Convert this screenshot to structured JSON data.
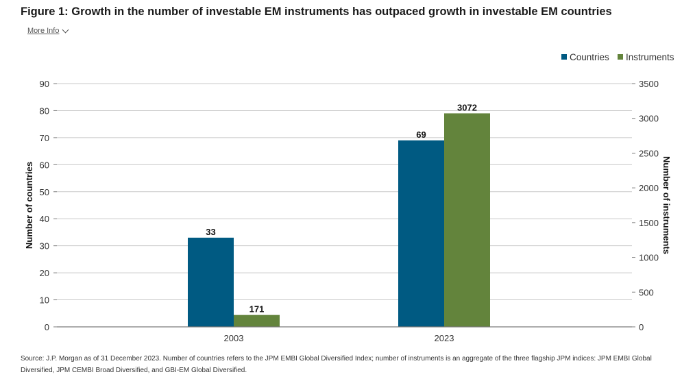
{
  "title": "Figure 1: Growth in the number of investable EM instruments has outpaced growth in investable EM countries",
  "more_info": {
    "label": "More Info",
    "icon": "chevron-down-icon"
  },
  "colors": {
    "countries": "#005a82",
    "instruments": "#63843c",
    "grid": "#c8c8c8",
    "axis": "#7a7a7a"
  },
  "chart_data": {
    "type": "bar",
    "categories": [
      "2003",
      "2023"
    ],
    "series": [
      {
        "name": "Countries",
        "axis": "left",
        "values": [
          33,
          69
        ],
        "labels": [
          "33",
          "69"
        ]
      },
      {
        "name": "Instruments",
        "axis": "right",
        "values": [
          171,
          3072
        ],
        "labels": [
          "171",
          "3072"
        ]
      }
    ],
    "y_left": {
      "label": "Number of countries",
      "lim": [
        0,
        90
      ],
      "ticks": [
        "0",
        "10",
        "20",
        "30",
        "40",
        "50",
        "60",
        "70",
        "80",
        "90"
      ]
    },
    "y_right": {
      "label": "Number of instruments",
      "lim": [
        0,
        3500
      ],
      "ticks": [
        "0",
        "500",
        "1000",
        "1500",
        "2000",
        "2500",
        "3000",
        "3500"
      ]
    },
    "grid": true,
    "legend": "top-right"
  },
  "source": "Source: J.P. Morgan as of 31 December 2023. Number of countries refers to the JPM EMBI Global Diversified Index; number of instruments is an aggregate of the three flagship JPM indices: JPM EMBI Global Diversified, JPM CEMBI Broad Diversified, and GBI-EM Global Diversified."
}
